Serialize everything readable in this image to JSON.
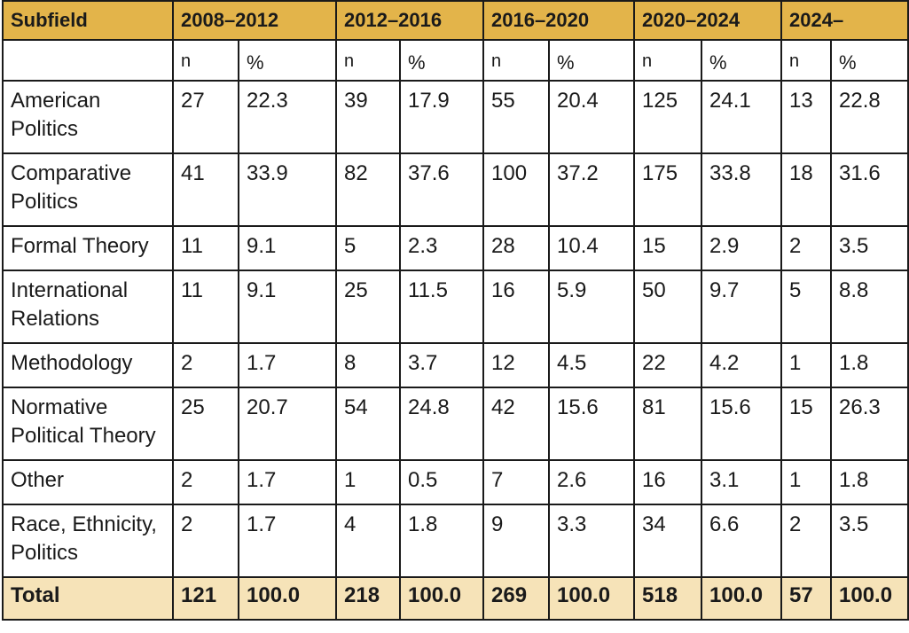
{
  "table": {
    "header": {
      "subfield": "Subfield",
      "periods": [
        "2008–2012",
        "2012–2016",
        "2016–2020",
        "2020–2024",
        "2024–"
      ]
    },
    "subheader": {
      "n": "n",
      "pct": "%"
    },
    "rows": [
      {
        "label": "American Politics",
        "values": [
          "27",
          "22.3",
          "39",
          "17.9",
          "55",
          "20.4",
          "125",
          "24.1",
          "13",
          "22.8"
        ]
      },
      {
        "label": "Comparative Politics",
        "values": [
          "41",
          "33.9",
          "82",
          "37.6",
          "100",
          "37.2",
          "175",
          "33.8",
          "18",
          "31.6"
        ]
      },
      {
        "label": "Formal Theory",
        "values": [
          "11",
          "9.1",
          "5",
          "2.3",
          "28",
          "10.4",
          "15",
          "2.9",
          "2",
          "3.5"
        ]
      },
      {
        "label": "International Relations",
        "values": [
          "11",
          "9.1",
          "25",
          "11.5",
          "16",
          "5.9",
          "50",
          "9.7",
          "5",
          "8.8"
        ]
      },
      {
        "label": "Methodology",
        "values": [
          "2",
          "1.7",
          "8",
          "3.7",
          "12",
          "4.5",
          "22",
          "4.2",
          "1",
          "1.8"
        ]
      },
      {
        "label": "Normative Political Theory",
        "values": [
          "25",
          "20.7",
          "54",
          "24.8",
          "42",
          "15.6",
          "81",
          "15.6",
          "15",
          "26.3"
        ]
      },
      {
        "label": "Other",
        "values": [
          "2",
          "1.7",
          "1",
          "0.5",
          "7",
          "2.6",
          "16",
          "3.1",
          "1",
          "1.8"
        ]
      },
      {
        "label": "Race, Ethnicity, Politics",
        "values": [
          "2",
          "1.7",
          "4",
          "1.8",
          "9",
          "3.3",
          "34",
          "6.6",
          "2",
          "3.5"
        ]
      }
    ],
    "total": {
      "label": "Total",
      "values": [
        "121",
        "100.0",
        "218",
        "100.0",
        "269",
        "100.0",
        "518",
        "100.0",
        "57",
        "100.0"
      ]
    }
  },
  "colors": {
    "header_bg": "#e3b44a",
    "total_bg": "#f6e3b8",
    "border": "#1a1a1a"
  }
}
